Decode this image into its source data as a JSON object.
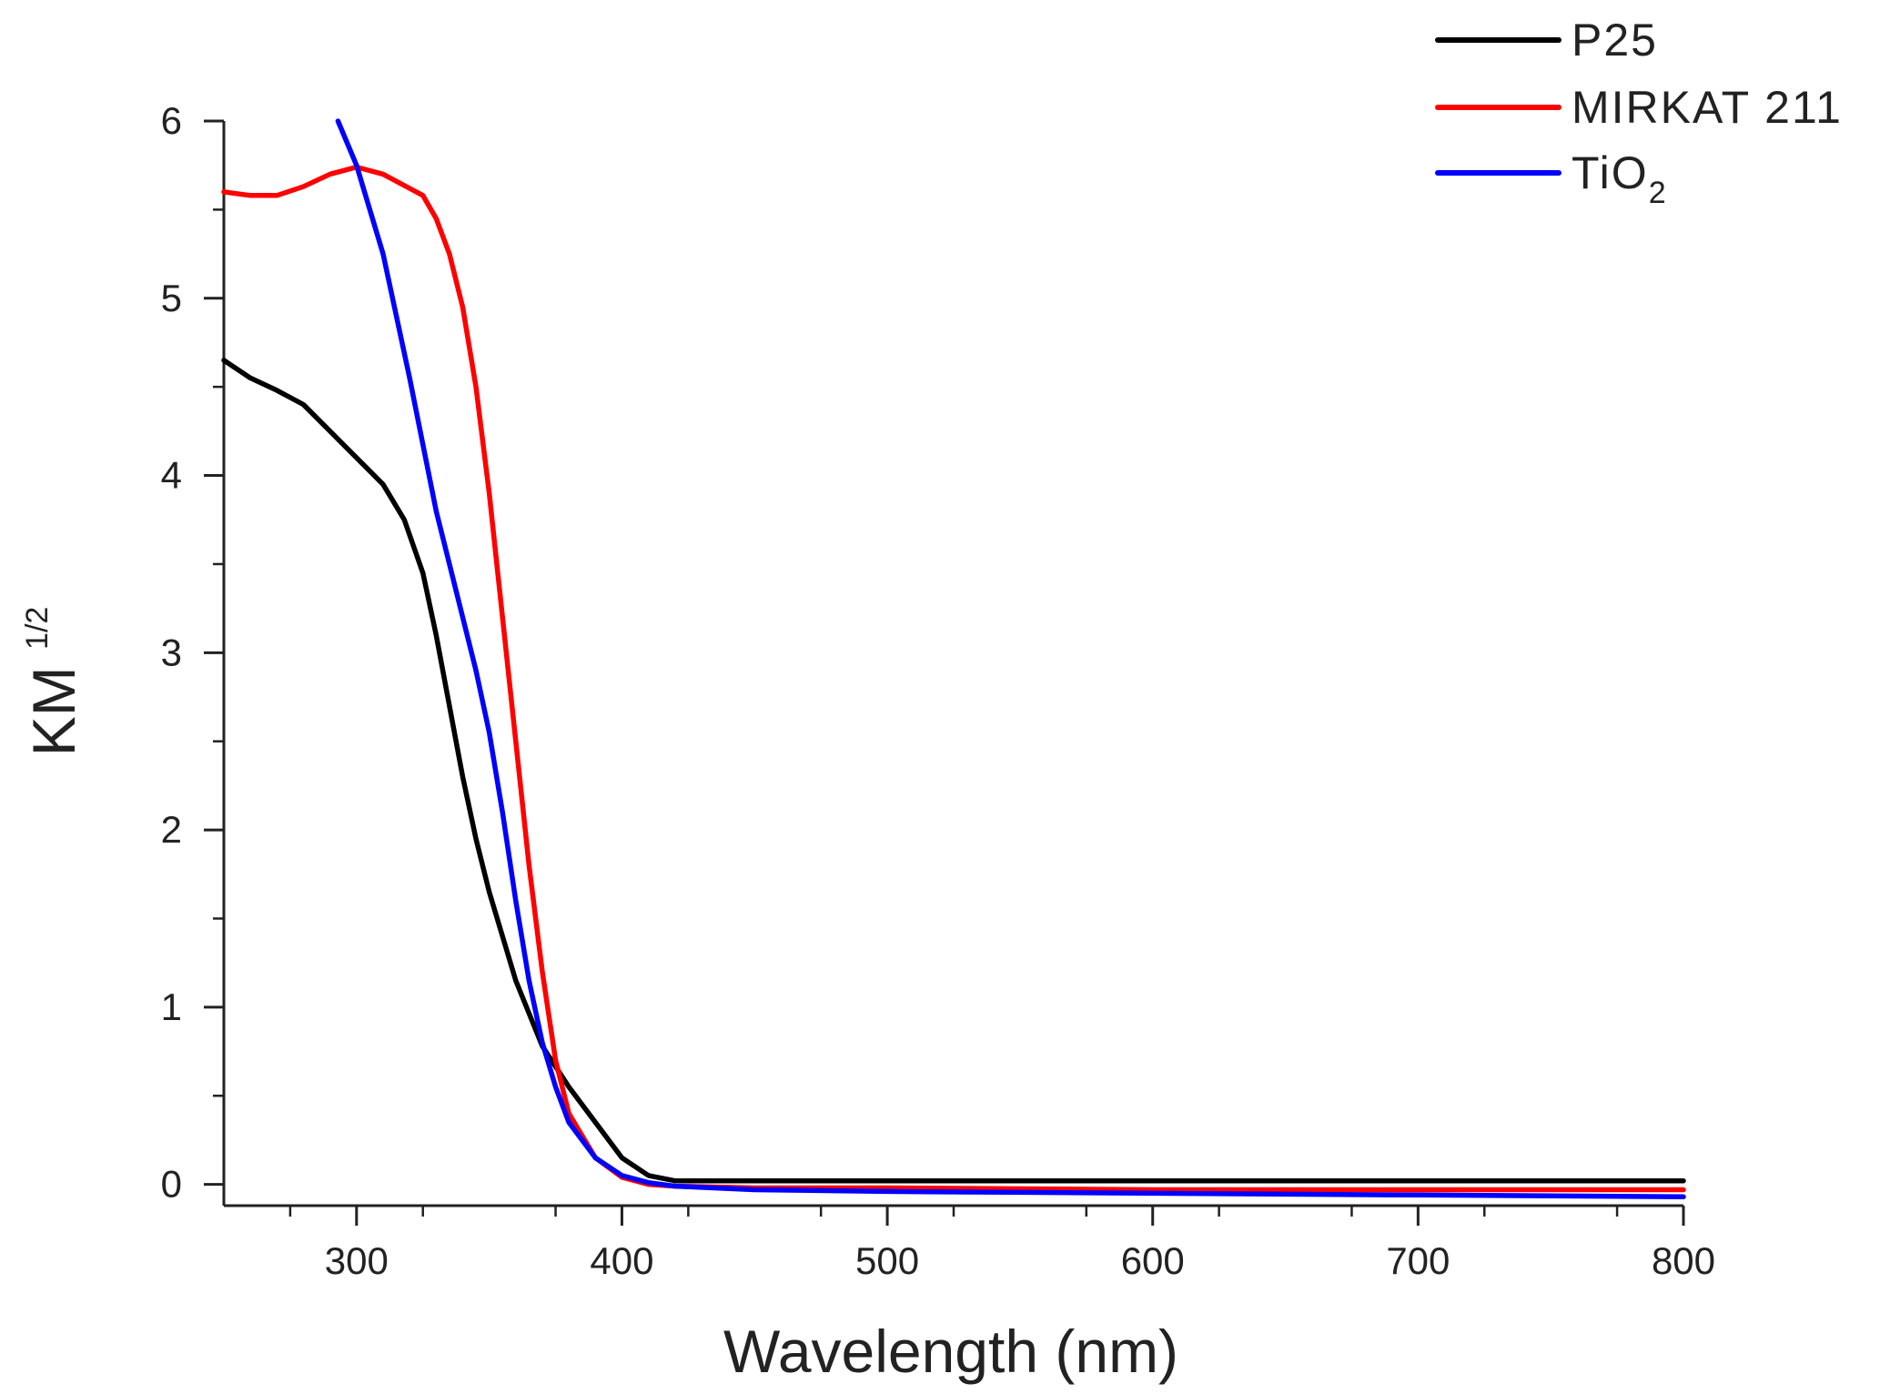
{
  "chart_data": {
    "type": "line",
    "title": "",
    "xlabel": "Wavelength (nm)",
    "ylabel": {
      "base": "KM",
      "sup": "1/2"
    },
    "xlim": [
      250,
      800
    ],
    "ylim": [
      -0.12,
      6
    ],
    "x_ticks": [
      300,
      400,
      500,
      600,
      700,
      800
    ],
    "x_tick_labels": [
      "300",
      "400",
      "500",
      "600",
      "700",
      "800"
    ],
    "y_ticks": [
      0,
      1,
      2,
      3,
      4,
      5,
      6
    ],
    "y_tick_labels": [
      "0",
      "1",
      "2",
      "3",
      "4",
      "5",
      "6"
    ],
    "grid": false,
    "legend_position": "top-right",
    "series": [
      {
        "name": "P25",
        "label": {
          "base": "P25",
          "sub": ""
        },
        "color": "#000000",
        "x": [
          250,
          260,
          270,
          280,
          290,
          300,
          310,
          318,
          325,
          330,
          335,
          340,
          345,
          350,
          360,
          370,
          380,
          390,
          400,
          410,
          420,
          440,
          500,
          600,
          700,
          800
        ],
        "y": [
          4.65,
          4.55,
          4.48,
          4.4,
          4.25,
          4.1,
          3.95,
          3.75,
          3.45,
          3.1,
          2.7,
          2.3,
          1.95,
          1.65,
          1.15,
          0.78,
          0.55,
          0.35,
          0.15,
          0.05,
          0.02,
          0.02,
          0.02,
          0.02,
          0.02,
          0.02
        ]
      },
      {
        "name": "MIRKAT 211",
        "label": {
          "base": "MIRKAT 211",
          "sub": ""
        },
        "color": "#ff0000",
        "x": [
          250,
          260,
          270,
          280,
          290,
          300,
          310,
          320,
          325,
          330,
          335,
          340,
          345,
          350,
          355,
          360,
          365,
          370,
          375,
          380,
          390,
          400,
          410,
          420,
          450,
          500,
          600,
          700,
          800
        ],
        "y": [
          5.6,
          5.58,
          5.58,
          5.63,
          5.7,
          5.74,
          5.7,
          5.62,
          5.58,
          5.45,
          5.25,
          4.95,
          4.5,
          3.9,
          3.2,
          2.5,
          1.8,
          1.2,
          0.7,
          0.4,
          0.15,
          0.04,
          0.0,
          -0.01,
          -0.02,
          -0.02,
          -0.03,
          -0.03,
          -0.03
        ]
      },
      {
        "name": "TiO2",
        "label": {
          "base": "TiO",
          "sub": "2"
        },
        "color": "#0000ff",
        "x": [
          293,
          300,
          310,
          320,
          330,
          340,
          345,
          350,
          355,
          360,
          365,
          370,
          375,
          380,
          390,
          400,
          410,
          420,
          450,
          500,
          600,
          700,
          800
        ],
        "y": [
          6.0,
          5.75,
          5.25,
          4.55,
          3.8,
          3.2,
          2.9,
          2.55,
          2.1,
          1.6,
          1.15,
          0.8,
          0.55,
          0.35,
          0.15,
          0.05,
          0.01,
          -0.01,
          -0.03,
          -0.04,
          -0.05,
          -0.06,
          -0.07
        ]
      }
    ]
  }
}
